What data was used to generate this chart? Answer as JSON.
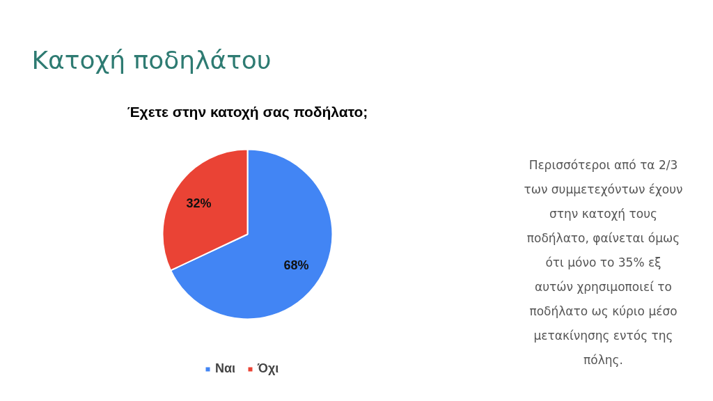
{
  "chart_data": {
    "type": "pie",
    "title": "Κατοχή ποδηλάτου",
    "subtitle": "Έχετε στην κατοχή σας ποδήλατο;",
    "categories": [
      "Ναι",
      "Όχι"
    ],
    "values": [
      68,
      32
    ],
    "colors": [
      "#4285f4",
      "#ea4335"
    ],
    "value_labels": [
      "68%",
      "32%"
    ],
    "legend": "bottom",
    "annotations": [
      "Περισσότεροι από τα 2/3 των συμμετεχόντων έχουν στην κατοχή τους ποδήλατο, φαίνεται όμως ότι μόνο το 35% εξ αυτών χρησιμοποιεί το ποδήλατο ως κύριο μέσο μετακίνησης εντός της πόλης."
    ]
  }
}
